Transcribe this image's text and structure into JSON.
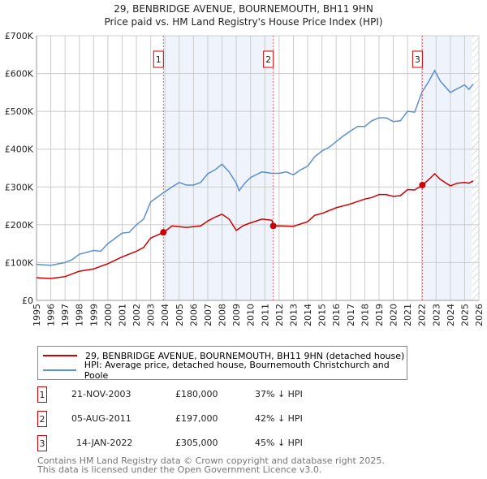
{
  "chart_data": {
    "type": "line",
    "title": "29, BENBRIDGE AVENUE, BOURNEMOUTH, BH11 9HN",
    "subtitle": "Price paid vs. HM Land Registry's House Price Index (HPI)",
    "xlim": [
      1995,
      2026
    ],
    "ylim": [
      0,
      700000
    ],
    "yticks": [
      {
        "v": 0,
        "l": "£0"
      },
      {
        "v": 100000,
        "l": "£100K"
      },
      {
        "v": 200000,
        "l": "£200K"
      },
      {
        "v": 300000,
        "l": "£300K"
      },
      {
        "v": 400000,
        "l": "£400K"
      },
      {
        "v": 500000,
        "l": "£500K"
      },
      {
        "v": 600000,
        "l": "£600K"
      },
      {
        "v": 700000,
        "l": "£700K"
      }
    ],
    "xticks": [
      "1995",
      "1996",
      "1997",
      "1998",
      "1999",
      "2000",
      "2001",
      "2002",
      "2003",
      "2004",
      "2005",
      "2006",
      "2007",
      "2008",
      "2009",
      "2010",
      "2011",
      "2012",
      "2013",
      "2014",
      "2015",
      "2016",
      "2017",
      "2018",
      "2019",
      "2020",
      "2021",
      "2022",
      "2023",
      "2024",
      "2025",
      "2026"
    ],
    "grid": true,
    "series": [
      {
        "name": "29, BENBRIDGE AVENUE, BOURNEMOUTH, BH11 9HN (detached house)",
        "color": "#cc0000",
        "x": [
          1995,
          1996,
          1997,
          1998,
          1999,
          2000,
          2001,
          2002,
          2002.5,
          2003,
          2003.9,
          2004.5,
          2005.5,
          2006.5,
          2007,
          2007.5,
          2008,
          2008.5,
          2009,
          2009.5,
          2010,
          2010.8,
          2011.5,
          2011.6,
          2012,
          2013,
          2014,
          2014.5,
          2015,
          2016,
          2017,
          2018,
          2018.5,
          2019,
          2019.5,
          2020,
          2020.5,
          2021,
          2021.5,
          2022.04,
          2022.5,
          2022.9,
          2023.3,
          2024,
          2024.5,
          2025,
          2025.3,
          2025.6
        ],
        "y": [
          60000,
          58000,
          63000,
          77000,
          83000,
          97000,
          115000,
          130000,
          140000,
          165000,
          180000,
          197000,
          193000,
          197000,
          210000,
          220000,
          228000,
          215000,
          185000,
          198000,
          205000,
          215000,
          212000,
          197000,
          197000,
          196000,
          208000,
          225000,
          230000,
          245000,
          255000,
          268000,
          272000,
          280000,
          280000,
          275000,
          277000,
          293000,
          292000,
          305000,
          320000,
          335000,
          320000,
          303000,
          310000,
          312000,
          310000,
          316000
        ]
      },
      {
        "name": "HPI: Average price, detached house, Bournemouth Christchurch and Poole",
        "color": "#5b8fd0",
        "x": [
          1995,
          1996,
          1997,
          1997.5,
          1998,
          1999,
          1999.5,
          2000,
          2001,
          2001.5,
          2002,
          2002.5,
          2003,
          2003.9,
          2004.5,
          2005,
          2005.5,
          2006,
          2006.5,
          2007,
          2007.5,
          2008,
          2008.5,
          2009,
          2009.2,
          2009.6,
          2010,
          2010.8,
          2011.5,
          2012,
          2012.5,
          2013,
          2013.5,
          2014,
          2014.5,
          2015,
          2015.5,
          2016,
          2016.5,
          2017,
          2017.5,
          2018,
          2018.5,
          2019,
          2019.5,
          2020,
          2020.5,
          2021,
          2021.5,
          2022,
          2022.5,
          2022.9,
          2023.3,
          2024,
          2024.5,
          2025,
          2025.3,
          2025.6
        ],
        "y": [
          95000,
          93000,
          100000,
          108000,
          122000,
          132000,
          130000,
          150000,
          178000,
          180000,
          200000,
          215000,
          260000,
          285000,
          300000,
          312000,
          305000,
          305000,
          312000,
          335000,
          345000,
          360000,
          340000,
          310000,
          290000,
          310000,
          325000,
          340000,
          336000,
          336000,
          340000,
          332000,
          345000,
          355000,
          380000,
          395000,
          405000,
          420000,
          435000,
          448000,
          460000,
          460000,
          475000,
          483000,
          483000,
          473000,
          475000,
          500000,
          498000,
          550000,
          580000,
          608000,
          580000,
          550000,
          560000,
          570000,
          558000,
          572000
        ]
      }
    ],
    "sales": [
      {
        "label": "1",
        "date": "21-NOV-2003",
        "x": 2003.89,
        "price": 180000,
        "price_text": "£180,000",
        "hpi": "37% ↓ HPI"
      },
      {
        "label": "2",
        "date": "05-AUG-2011",
        "x": 2011.59,
        "price": 197000,
        "price_text": "£197,000",
        "hpi": "42% ↓ HPI"
      },
      {
        "label": "3",
        "date": "14-JAN-2022",
        "x": 2022.04,
        "price": 305000,
        "price_text": "£305,000",
        "hpi": "45% ↓ HPI"
      }
    ],
    "data_end": 2025.5
  },
  "footer": {
    "line1": "Contains HM Land Registry data © Crown copyright and database right 2025.",
    "line2": "This data is licensed under the Open Government Licence v3.0."
  }
}
